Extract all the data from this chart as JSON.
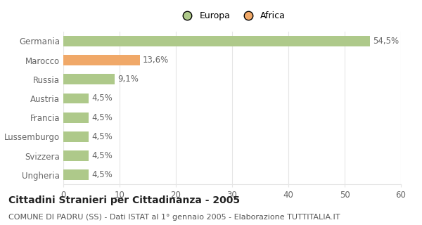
{
  "categories": [
    "Ungheria",
    "Svizzera",
    "Lussemburgo",
    "Francia",
    "Austria",
    "Russia",
    "Marocco",
    "Germania"
  ],
  "values": [
    4.5,
    4.5,
    4.5,
    4.5,
    4.5,
    9.1,
    13.6,
    54.5
  ],
  "bar_colors": [
    "#aec98a",
    "#aec98a",
    "#aec98a",
    "#aec98a",
    "#aec98a",
    "#aec98a",
    "#f0a868",
    "#aec98a"
  ],
  "labels": [
    "4,5%",
    "4,5%",
    "4,5%",
    "4,5%",
    "4,5%",
    "9,1%",
    "13,6%",
    "54,5%"
  ],
  "legend": [
    {
      "label": "Europa",
      "color": "#aec98a"
    },
    {
      "label": "Africa",
      "color": "#f0a868"
    }
  ],
  "title": "Cittadini Stranieri per Cittadinanza - 2005",
  "subtitle": "COMUNE DI PADRU (SS) - Dati ISTAT al 1° gennaio 2005 - Elaborazione TUTTITALIA.IT",
  "xlim": [
    0,
    60
  ],
  "xticks": [
    0,
    10,
    20,
    30,
    40,
    50,
    60
  ],
  "background_color": "#ffffff",
  "grid_color": "#e5e5e5",
  "bar_height": 0.55,
  "title_fontsize": 10,
  "subtitle_fontsize": 8,
  "tick_fontsize": 8.5,
  "label_fontsize": 8.5,
  "legend_fontsize": 9
}
